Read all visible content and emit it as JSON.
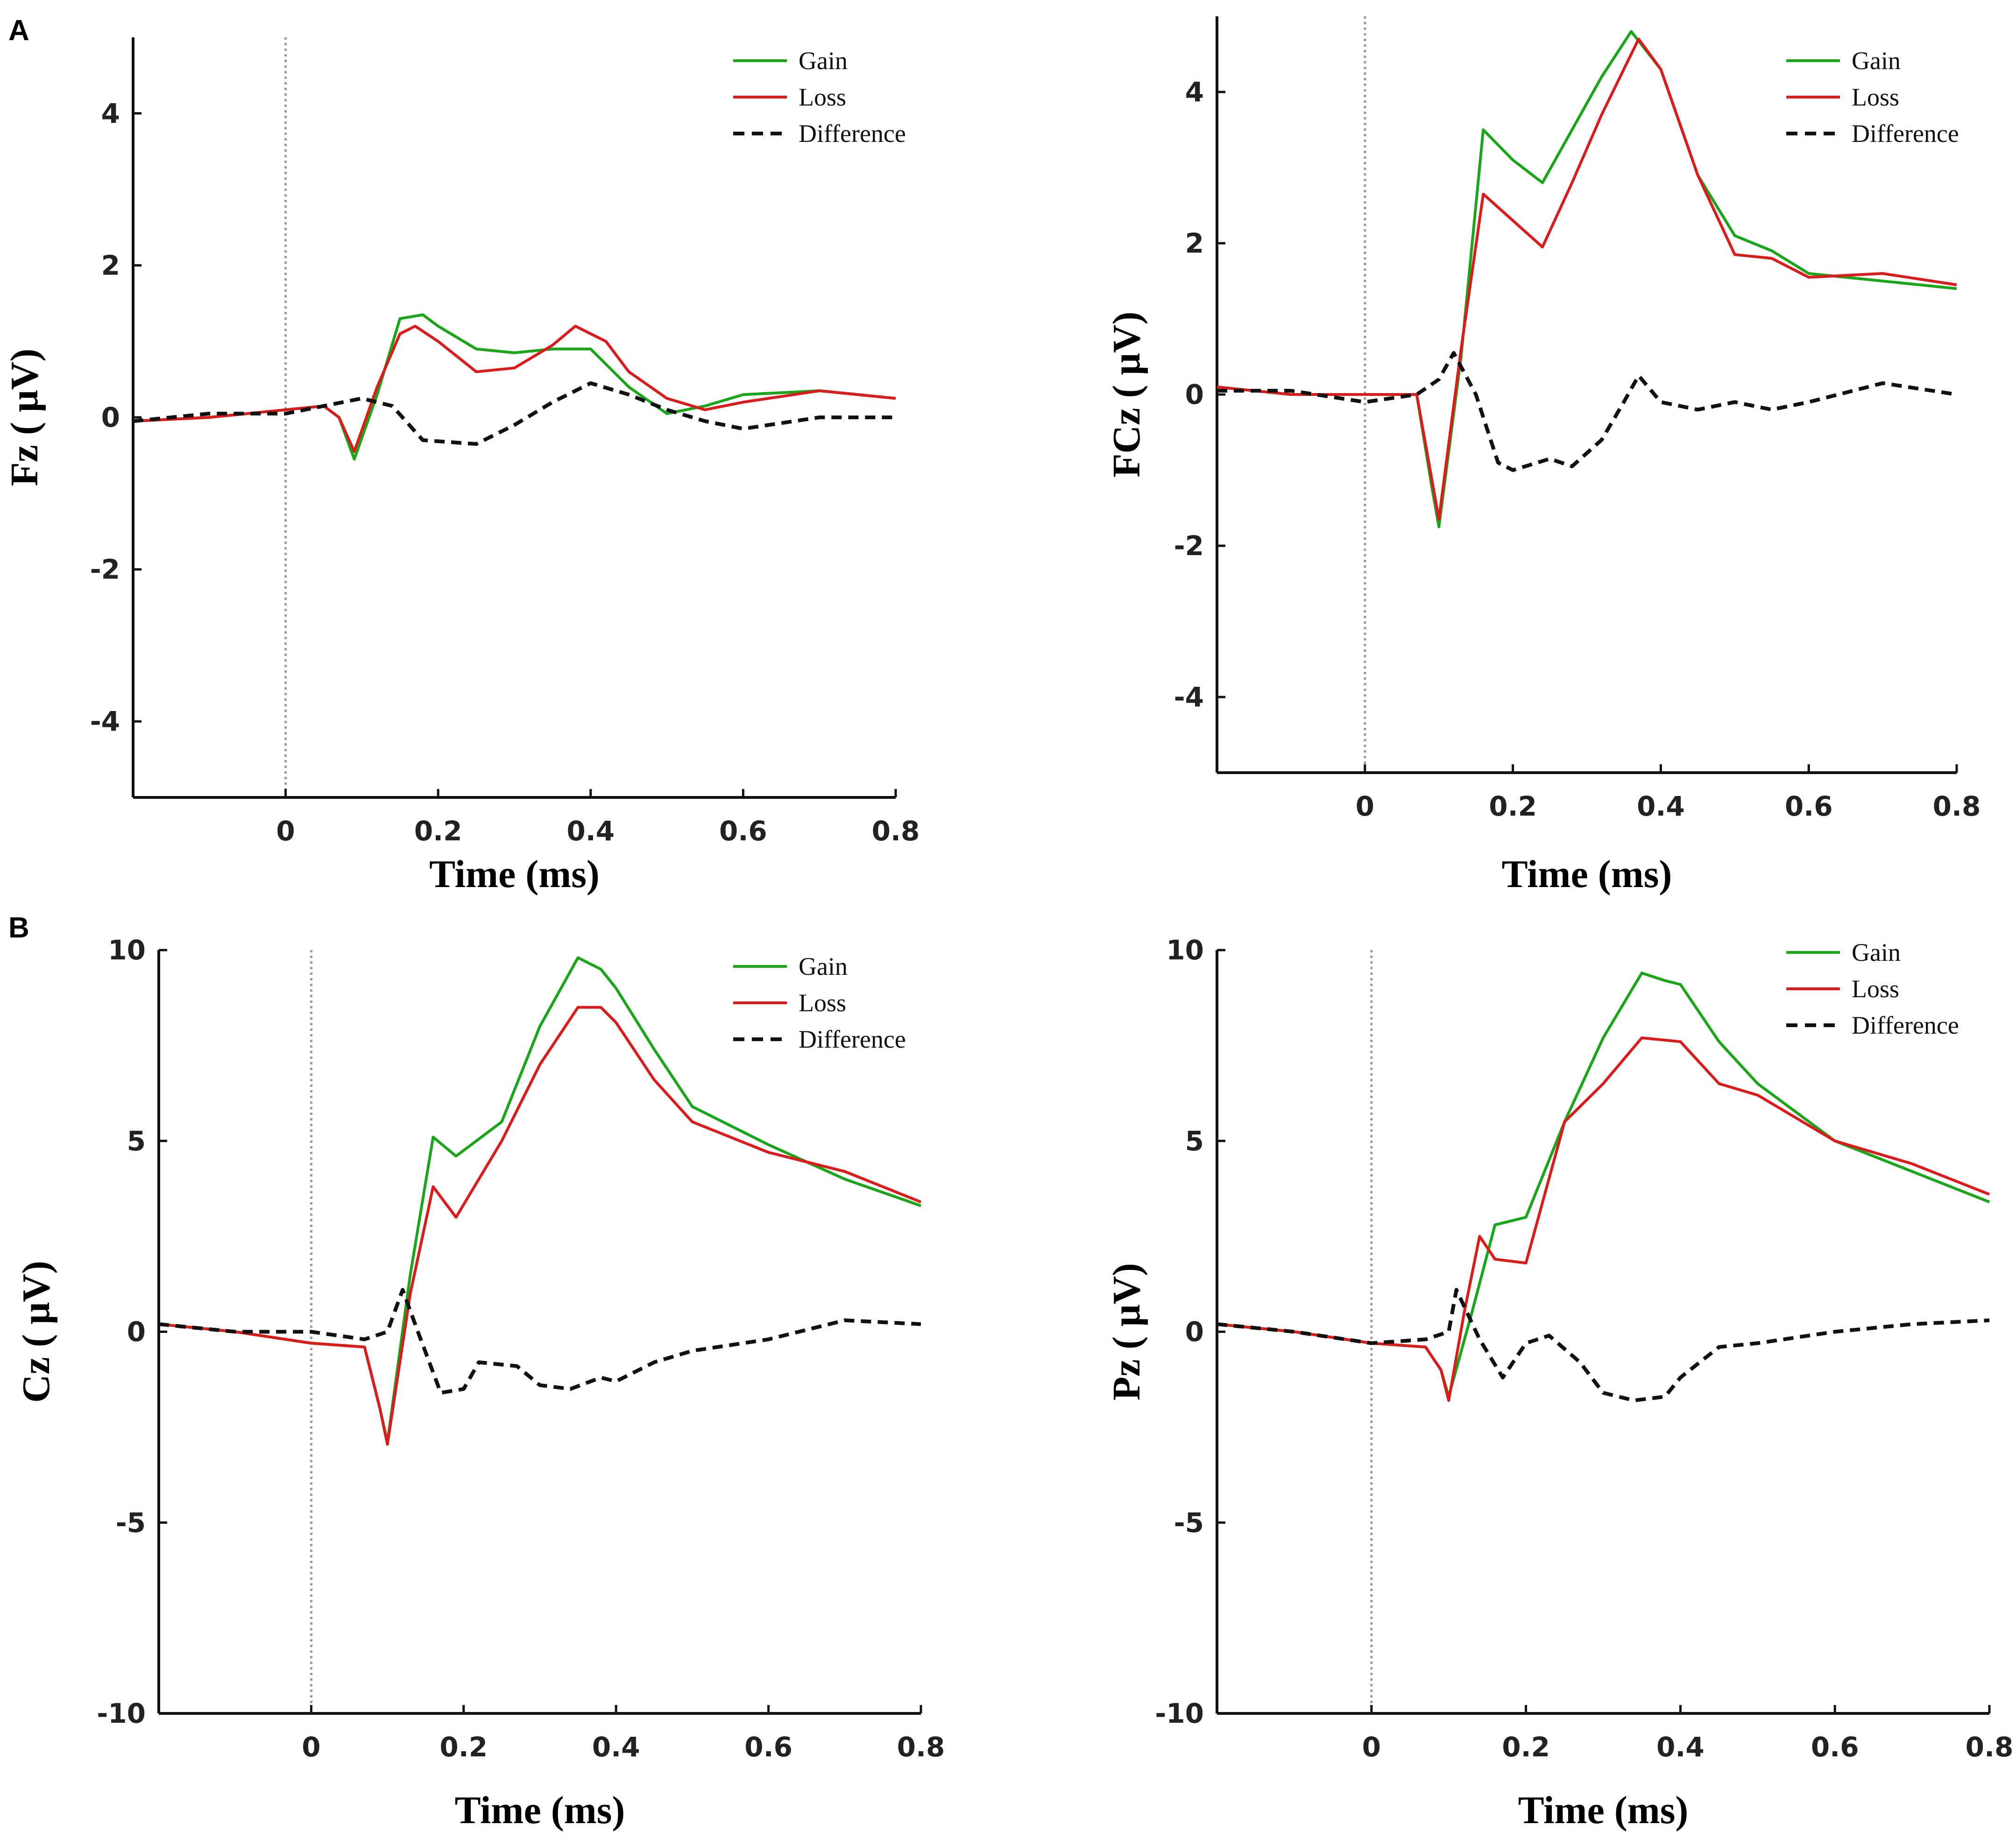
{
  "panel_labels": [
    "A",
    "B"
  ],
  "legend": [
    {
      "label": "Gain",
      "color": "#1aa51a",
      "style": "solid"
    },
    {
      "label": "Loss",
      "color": "#d91c1c",
      "style": "solid"
    },
    {
      "label": "Difference",
      "color": "#111111",
      "style": "dashed"
    }
  ],
  "colors": {
    "gain": "#1aa51a",
    "loss": "#d91c1c",
    "difference": "#111111",
    "zero_line": "#999999"
  },
  "chart_data": [
    {
      "type": "line",
      "panel": "A",
      "ylabel": "Fz ( μV)",
      "xlabel": "Time (ms)",
      "xlim": [
        -0.2,
        0.8
      ],
      "ylim": [
        -5,
        5
      ],
      "xticks": [
        0,
        0.2,
        0.4,
        0.6,
        0.8
      ],
      "xtick_labels": [
        "0",
        "0.2",
        "0.4",
        "0.6",
        "0.8"
      ],
      "yticks": [
        4,
        2,
        0,
        -2,
        -4
      ],
      "ytick_labels": [
        "4",
        "2",
        "0",
        "-2",
        "-4"
      ],
      "series": [
        {
          "name": "Gain",
          "x": [
            -0.2,
            -0.1,
            0,
            0.05,
            0.07,
            0.09,
            0.12,
            0.15,
            0.18,
            0.2,
            0.25,
            0.3,
            0.35,
            0.4,
            0.45,
            0.5,
            0.55,
            0.6,
            0.7,
            0.8
          ],
          "y": [
            -0.05,
            0,
            0.1,
            0.15,
            0,
            -0.55,
            0.3,
            1.3,
            1.35,
            1.2,
            0.9,
            0.85,
            0.9,
            0.9,
            0.4,
            0.05,
            0.15,
            0.3,
            0.35,
            0.25
          ]
        },
        {
          "name": "Loss",
          "x": [
            -0.2,
            -0.1,
            0,
            0.05,
            0.07,
            0.09,
            0.12,
            0.15,
            0.17,
            0.2,
            0.25,
            0.3,
            0.35,
            0.38,
            0.42,
            0.45,
            0.5,
            0.55,
            0.6,
            0.7,
            0.8
          ],
          "y": [
            -0.05,
            0,
            0.1,
            0.15,
            0,
            -0.45,
            0.4,
            1.1,
            1.2,
            1.0,
            0.6,
            0.65,
            0.95,
            1.2,
            1.0,
            0.6,
            0.25,
            0.1,
            0.2,
            0.35,
            0.25
          ]
        },
        {
          "name": "Difference",
          "x": [
            -0.2,
            -0.1,
            0,
            0.05,
            0.1,
            0.14,
            0.18,
            0.25,
            0.3,
            0.35,
            0.4,
            0.45,
            0.5,
            0.55,
            0.6,
            0.7,
            0.8
          ],
          "y": [
            -0.05,
            0.05,
            0.05,
            0.15,
            0.25,
            0.15,
            -0.3,
            -0.35,
            -0.1,
            0.2,
            0.45,
            0.3,
            0.1,
            -0.05,
            -0.15,
            0.0,
            0.0
          ]
        }
      ]
    },
    {
      "type": "line",
      "panel": "A",
      "ylabel": "FCz ( μV)",
      "xlabel": "Time (ms)",
      "xlim": [
        -0.2,
        0.8
      ],
      "ylim": [
        -5,
        5
      ],
      "xticks": [
        0,
        0.2,
        0.4,
        0.6,
        0.8
      ],
      "xtick_labels": [
        "0",
        "0.2",
        "0.4",
        "0.6",
        "0.8"
      ],
      "yticks": [
        4,
        2,
        0,
        -2,
        -4
      ],
      "ytick_labels": [
        "4",
        "2",
        "0",
        "-2",
        "-4"
      ],
      "series": [
        {
          "name": "Gain",
          "x": [
            -0.2,
            -0.1,
            0,
            0.07,
            0.09,
            0.1,
            0.13,
            0.16,
            0.2,
            0.24,
            0.28,
            0.32,
            0.36,
            0.4,
            0.45,
            0.5,
            0.55,
            0.6,
            0.7,
            0.8
          ],
          "y": [
            0.1,
            0,
            0,
            0,
            -1.2,
            -1.75,
            0.5,
            3.5,
            3.1,
            2.8,
            3.5,
            4.2,
            4.8,
            4.3,
            2.9,
            2.1,
            1.9,
            1.6,
            1.5,
            1.4
          ]
        },
        {
          "name": "Loss",
          "x": [
            -0.2,
            -0.1,
            0,
            0.07,
            0.09,
            0.1,
            0.13,
            0.16,
            0.2,
            0.24,
            0.28,
            0.32,
            0.37,
            0.4,
            0.45,
            0.5,
            0.55,
            0.6,
            0.7,
            0.8
          ],
          "y": [
            0.1,
            0,
            0,
            0,
            -1.1,
            -1.65,
            0.6,
            2.65,
            2.3,
            1.95,
            2.8,
            3.7,
            4.7,
            4.3,
            2.9,
            1.85,
            1.8,
            1.55,
            1.6,
            1.45
          ]
        },
        {
          "name": "Difference",
          "x": [
            -0.2,
            -0.1,
            0,
            0.07,
            0.1,
            0.12,
            0.15,
            0.18,
            0.2,
            0.25,
            0.28,
            0.32,
            0.35,
            0.37,
            0.4,
            0.45,
            0.5,
            0.55,
            0.6,
            0.7,
            0.8
          ],
          "y": [
            0.05,
            0.05,
            -0.1,
            0.0,
            0.2,
            0.55,
            0.0,
            -0.9,
            -1.0,
            -0.85,
            -0.95,
            -0.6,
            -0.1,
            0.25,
            -0.1,
            -0.2,
            -0.1,
            -0.2,
            -0.1,
            0.15,
            0.0
          ]
        }
      ]
    },
    {
      "type": "line",
      "panel": "B",
      "ylabel": "Cz ( μV)",
      "xlabel": "Time (ms)",
      "xlim": [
        -0.2,
        0.8
      ],
      "ylim": [
        -10,
        10
      ],
      "xticks": [
        0,
        0.2,
        0.4,
        0.6,
        0.8
      ],
      "xtick_labels": [
        "0",
        "0.2",
        "0.4",
        "0.6",
        "0.8"
      ],
      "yticks": [
        10,
        5,
        0,
        -5,
        -10
      ],
      "ytick_labels": [
        "10",
        "5",
        "0",
        "-5",
        "-10"
      ],
      "series": [
        {
          "name": "Gain",
          "x": [
            -0.2,
            -0.1,
            0,
            0.07,
            0.09,
            0.1,
            0.13,
            0.16,
            0.19,
            0.25,
            0.3,
            0.35,
            0.38,
            0.4,
            0.45,
            0.5,
            0.6,
            0.7,
            0.8
          ],
          "y": [
            0.2,
            0,
            -0.3,
            -0.4,
            -2.0,
            -2.9,
            1.5,
            5.1,
            4.6,
            5.5,
            8.0,
            9.8,
            9.5,
            9.0,
            7.4,
            5.9,
            4.9,
            4.0,
            3.3
          ]
        },
        {
          "name": "Loss",
          "x": [
            -0.2,
            -0.1,
            0,
            0.07,
            0.09,
            0.1,
            0.13,
            0.16,
            0.19,
            0.25,
            0.3,
            0.35,
            0.38,
            0.4,
            0.45,
            0.5,
            0.6,
            0.7,
            0.8
          ],
          "y": [
            0.2,
            0,
            -0.3,
            -0.4,
            -2.0,
            -2.95,
            1.0,
            3.8,
            3.0,
            5.0,
            7.0,
            8.5,
            8.5,
            8.1,
            6.6,
            5.5,
            4.7,
            4.2,
            3.4
          ]
        },
        {
          "name": "Difference",
          "x": [
            -0.2,
            -0.1,
            0,
            0.07,
            0.1,
            0.12,
            0.14,
            0.17,
            0.2,
            0.22,
            0.27,
            0.3,
            0.34,
            0.38,
            0.4,
            0.45,
            0.5,
            0.6,
            0.7,
            0.8
          ],
          "y": [
            0.2,
            0,
            0,
            -0.2,
            0.0,
            1.1,
            0.0,
            -1.6,
            -1.5,
            -0.8,
            -0.9,
            -1.4,
            -1.5,
            -1.2,
            -1.3,
            -0.8,
            -0.5,
            -0.2,
            0.3,
            0.2
          ]
        }
      ]
    },
    {
      "type": "line",
      "panel": "B",
      "ylabel": "Pz ( μV)",
      "xlabel": "Time (ms)",
      "xlim": [
        -0.2,
        0.8
      ],
      "ylim": [
        -10,
        10
      ],
      "xticks": [
        0,
        0.2,
        0.4,
        0.6,
        0.8
      ],
      "xtick_labels": [
        "0",
        "0.2",
        "0.4",
        "0.6",
        "0.8"
      ],
      "yticks": [
        10,
        5,
        0,
        -5,
        -10
      ],
      "ytick_labels": [
        "10",
        "5",
        "0",
        "-5",
        "-10"
      ],
      "series": [
        {
          "name": "Gain",
          "x": [
            -0.2,
            -0.1,
            0,
            0.07,
            0.09,
            0.1,
            0.13,
            0.16,
            0.2,
            0.25,
            0.3,
            0.35,
            0.38,
            0.4,
            0.45,
            0.5,
            0.6,
            0.7,
            0.8
          ],
          "y": [
            0.2,
            0,
            -0.3,
            -0.4,
            -1.0,
            -1.7,
            0.5,
            2.8,
            3.0,
            5.5,
            7.7,
            9.4,
            9.2,
            9.1,
            7.6,
            6.5,
            5.0,
            4.2,
            3.4
          ]
        },
        {
          "name": "Loss",
          "x": [
            -0.2,
            -0.1,
            0,
            0.07,
            0.09,
            0.1,
            0.12,
            0.14,
            0.16,
            0.2,
            0.25,
            0.3,
            0.35,
            0.4,
            0.45,
            0.5,
            0.6,
            0.7,
            0.8
          ],
          "y": [
            0.2,
            0,
            -0.3,
            -0.4,
            -1.0,
            -1.8,
            0.5,
            2.5,
            1.9,
            1.8,
            5.5,
            6.5,
            7.7,
            7.6,
            6.5,
            6.2,
            5.0,
            4.4,
            3.6
          ]
        },
        {
          "name": "Difference",
          "x": [
            -0.2,
            -0.1,
            0,
            0.07,
            0.1,
            0.11,
            0.14,
            0.17,
            0.2,
            0.23,
            0.27,
            0.3,
            0.34,
            0.38,
            0.4,
            0.45,
            0.5,
            0.6,
            0.7,
            0.8
          ],
          "y": [
            0.2,
            0,
            -0.3,
            -0.2,
            0.0,
            1.1,
            -0.2,
            -1.2,
            -0.3,
            -0.1,
            -0.8,
            -1.6,
            -1.8,
            -1.7,
            -1.2,
            -0.4,
            -0.3,
            0.0,
            0.2,
            0.3
          ]
        }
      ]
    }
  ]
}
